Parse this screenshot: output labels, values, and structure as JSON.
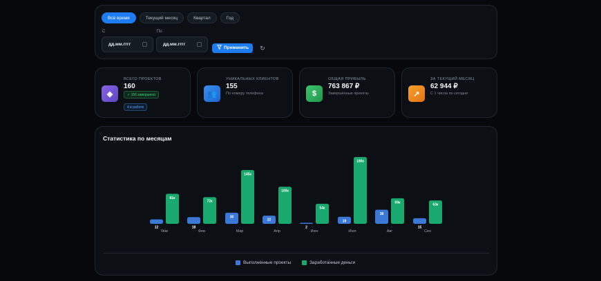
{
  "filter": {
    "tabs": [
      {
        "label": "Всё время",
        "active": true
      },
      {
        "label": "Текущий месяц",
        "active": false
      },
      {
        "label": "Квартал",
        "active": false
      },
      {
        "label": "Год",
        "active": false
      }
    ],
    "from_label": "С",
    "to_label": "По",
    "from_placeholder": "дд.мм.гггг",
    "to_placeholder": "дд.мм.гггг",
    "apply_label": "Применить"
  },
  "stats": {
    "projects": {
      "title": "Всего проектов",
      "value": "160",
      "completed_badge": "✓ 156 завершено",
      "in_progress_badge": "4 в работе",
      "icon": "layers-icon",
      "color": "#7a5bd6"
    },
    "clients": {
      "title": "Уникальных клиентов",
      "value": "155",
      "subtitle": "По номеру телефона",
      "icon": "users-icon",
      "color": "#2a7ee6"
    },
    "profit": {
      "title": "Общая прибыль",
      "value": "763 867 ₽",
      "subtitle": "Завершённые проекты",
      "icon": "dollar-icon",
      "color": "#2fb35f"
    },
    "month": {
      "title": "За текущий месяц",
      "value": "62 944 ₽",
      "subtitle": "С 1 числа по сегодня",
      "icon": "trend-up-icon",
      "color": "#f08a1c"
    }
  },
  "chart": {
    "title": "Статистика по месяцам",
    "legend_projects": "Выполненные проекты",
    "legend_money": "Заработанные деньги",
    "color_projects": "#3b78d8",
    "color_money": "#19a86e"
  },
  "chart_data": {
    "type": "bar",
    "categories": [
      "Янв",
      "Фев",
      "Мар",
      "Апр",
      "Июн",
      "Июл",
      "Авг",
      "Сен"
    ],
    "series": [
      {
        "name": "Выполненные проекты",
        "values": [
          12,
          18,
          30,
          22,
          2,
          19,
          38,
          15
        ],
        "labels": [
          "12",
          "18",
          "30",
          "22",
          "2",
          "19",
          "38",
          "15"
        ]
      },
      {
        "name": "Заработанные деньги",
        "values": [
          81,
          72,
          145,
          100,
          54,
          180,
          69,
          63
        ],
        "labels": [
          "81к",
          "72к",
          "145к",
          "100к",
          "54к",
          "180к",
          "69к",
          "63к"
        ]
      }
    ],
    "legend_position": "bottom",
    "grid": false
  }
}
